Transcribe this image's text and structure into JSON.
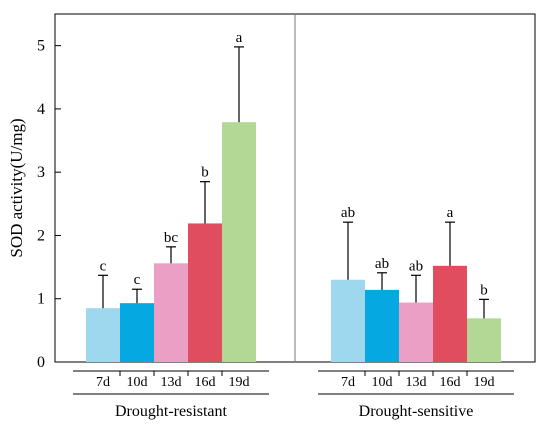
{
  "chart_data": {
    "type": "bar",
    "ylabel": "SOD activity(U/mg)",
    "ylim": [
      0,
      5.5
    ],
    "yticks": [
      0,
      1,
      2,
      3,
      4,
      5
    ],
    "categories": [
      "7d",
      "10d",
      "13d",
      "16d",
      "19d"
    ],
    "colors": [
      "#9dd8ef",
      "#05a8e0",
      "#ec9fc5",
      "#e04d5e",
      "#b3d896"
    ],
    "groups": [
      {
        "name": "Drought-resistant",
        "values": [
          0.85,
          0.93,
          1.56,
          2.19,
          3.79
        ],
        "errors": [
          0.52,
          0.22,
          0.26,
          0.66,
          1.19
        ],
        "letters": [
          "c",
          "c",
          "bc",
          "b",
          "a"
        ]
      },
      {
        "name": "Drought-sensitive",
        "values": [
          1.3,
          1.14,
          0.94,
          1.52,
          0.69
        ],
        "errors": [
          0.91,
          0.27,
          0.43,
          0.69,
          0.3
        ],
        "letters": [
          "ab",
          "ab",
          "ab",
          "a",
          "b"
        ]
      }
    ]
  }
}
